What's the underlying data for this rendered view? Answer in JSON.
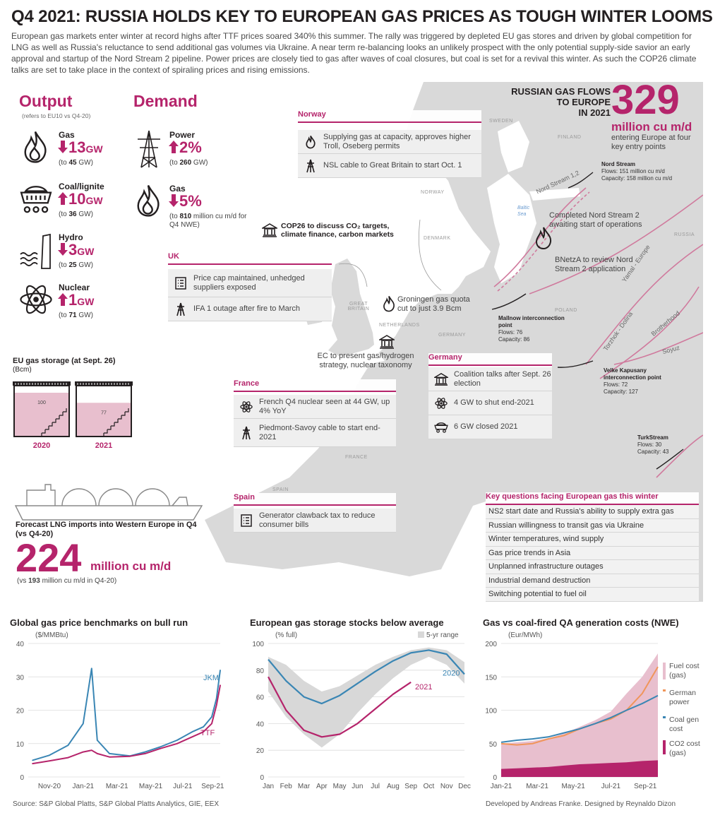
{
  "title": "Q4 2021: RUSSIA HOLDS KEY TO EUROPEAN GAS PRICES AS TOUGH WINTER LOOMS",
  "intro": "European gas markets enter winter at record highs after TTF prices soared 340% this summer. The rally was triggered by depleted EU gas stores and driven by global competition for LNG as well as Russia's reluctance to send additional gas volumes via Ukraine. A near term re-balancing looks an unlikely prospect with the only potential supply-side savior an early approval and startup of the Nord Stream 2 pipeline. Power prices are closely tied to gas after waves of coal closures, but coal is set for a revival this winter. As such the COP26 climate talks are set to take place in the context of spiraling prices and rising emissions.",
  "colors": {
    "accent": "#b5246b",
    "pink_fill": "#e8bfce",
    "blue": "#3a86b4",
    "orange": "#f0955a",
    "map_grey": "#d9d9d9"
  },
  "output": {
    "title": "Output",
    "subtitle": "(refers to EU10 vs Q4-20)",
    "items": [
      {
        "name": "Gas",
        "icon": "flame-icon",
        "direction": "down",
        "value": "13",
        "unit": "GW",
        "note_pre": "(to ",
        "note_val": "45",
        "note_post": " GW)"
      },
      {
        "name": "Coal/lignite",
        "icon": "coal-cart-icon",
        "direction": "up",
        "value": "10",
        "unit": "GW",
        "note_pre": "(to ",
        "note_val": "36",
        "note_post": " GW)"
      },
      {
        "name": "Hydro",
        "icon": "hydro-icon",
        "direction": "down",
        "value": "3",
        "unit": "GW",
        "note_pre": "(to ",
        "note_val": "25",
        "note_post": " GW)"
      },
      {
        "name": "Nuclear",
        "icon": "atom-icon",
        "direction": "up",
        "value": "1",
        "unit": "GW",
        "note_pre": "(to ",
        "note_val": "71",
        "note_post": " GW)"
      }
    ]
  },
  "demand": {
    "title": "Demand",
    "items": [
      {
        "name": "Power",
        "icon": "pylon-icon",
        "direction": "up",
        "value": "2%",
        "note_pre": "(to ",
        "note_val": "260",
        "note_post": " GW)"
      },
      {
        "name": "Gas",
        "icon": "flame-icon",
        "direction": "down",
        "value": "5%",
        "note_pre": "(to ",
        "note_val": "810",
        "note_post": " million cu m/d for Q4 NWE)"
      }
    ]
  },
  "storage": {
    "title": "EU gas storage (at Sept. 26)",
    "unit": "(Bcm)",
    "tanks": [
      {
        "year": "2020",
        "value": 100
      },
      {
        "year": "2021",
        "value": 77
      }
    ]
  },
  "lng": {
    "title": "Forecast LNG imports into Western Europe in Q4",
    "subtitle": "(vs Q4-20)",
    "value": "224",
    "unit": "million cu m/d",
    "note_pre": "(vs ",
    "note_val": "193",
    "note_post": " million cu m/d in Q4-20)"
  },
  "russian_flows": {
    "label": "RUSSIAN GAS FLOWS TO EUROPE IN 2021",
    "line1": "RUSSIAN GAS FLOWS",
    "line2": "TO EUROPE",
    "line3": "IN 2021",
    "value": "329",
    "unit": "million cu m/d",
    "note": "entering Europe at four key entry points"
  },
  "map": {
    "countries": [
      "SWEDEN",
      "FINLAND",
      "NORWAY",
      "DENMARK",
      "RUSSIA",
      "GREAT BRITAIN",
      "NETHERLANDS",
      "GERMANY",
      "POLAND",
      "FRANCE",
      "SPAIN"
    ],
    "sea": "Baltic Sea",
    "pipelines": [
      "Nord Stream 1,2",
      "Yamal - Europe",
      "Torzhok - Dolina",
      "Brotherhood",
      "Soyuz"
    ],
    "entry_points": [
      {
        "name": "Nord Stream",
        "flows": "Flows: 151 million cu m/d",
        "capacity": "Capacity: 158 million cu m/d"
      },
      {
        "name": "Mallnow interconnection point",
        "flows": "Flows: 76",
        "capacity": "Capacity: 86"
      },
      {
        "name": "Velke Kapusany interconnection point",
        "flows": "Flows: 72",
        "capacity": "Capacity: 127"
      },
      {
        "name": "TurkStream",
        "flows": "Flows: 30",
        "capacity": "Capacity: 43"
      }
    ],
    "annotations": {
      "ns2": "Completed Nord Stream 2 awaiting start of operations",
      "bnetza": "BNetzA to review Nord Stream 2 application",
      "cop26": "COP26 to discuss CO₂ targets, climate finance, carbon markets",
      "groningen": "Groningen gas quota cut to just 3.9 Bcm",
      "ec": "EC to present gas/hydrogen strategy, nuclear taxonomy"
    }
  },
  "panels": {
    "norway": {
      "title": "Norway",
      "rows": [
        {
          "icon": "flame-icon",
          "text": "Supplying gas at capacity, approves higher Troll, Oseberg permits"
        },
        {
          "icon": "pylon-icon",
          "text": "NSL cable to Great Britain to start Oct. 1"
        }
      ]
    },
    "uk": {
      "title": "UK",
      "rows": [
        {
          "icon": "checklist-icon",
          "text": "Price cap maintained, unhedged suppliers exposed"
        },
        {
          "icon": "pylon-icon",
          "text": "IFA 1 outage after fire to March"
        }
      ]
    },
    "germany": {
      "title": "Germany",
      "rows": [
        {
          "icon": "government-icon",
          "text": "Coalition talks after Sept. 26 election"
        },
        {
          "icon": "atom-icon",
          "text": "4 GW to shut end-2021"
        },
        {
          "icon": "coal-cart-icon",
          "text": "6 GW closed 2021"
        }
      ]
    },
    "france": {
      "title": "France",
      "rows": [
        {
          "icon": "atom-icon",
          "text": "French Q4 nuclear seen at 44 GW, up 4% YoY"
        },
        {
          "icon": "pylon-icon",
          "text": "Piedmont-Savoy cable to start end-2021"
        }
      ]
    },
    "spain": {
      "title": "Spain",
      "rows": [
        {
          "icon": "checklist-icon",
          "text": "Generator clawback tax to reduce consumer bills"
        }
      ]
    }
  },
  "key_questions": {
    "title": "Key questions facing European gas this winter",
    "items": [
      "NS2 start date and Russia's ability to supply extra gas",
      "Russian willingness to transit gas via Ukraine",
      "Winter temperatures, wind supply",
      "Gas price trends in Asia",
      "Unplanned infrastructure outages",
      "Industrial demand destruction",
      "Switching potential to fuel oil"
    ]
  },
  "chart_data": [
    {
      "type": "line",
      "title": "Global gas price benchmarks on bull run",
      "ylabel": "($/MMBtu)",
      "ylim": [
        0,
        40
      ],
      "yticks": [
        "0",
        "10",
        "20",
        "30",
        "40"
      ],
      "xticks": [
        "Nov-20",
        "Jan-21",
        "Mar-21",
        "May-21",
        "Jul-21",
        "Sep-21"
      ],
      "x": [
        "Oct-20",
        "Nov-20",
        "Dec-20",
        "Jan-21 (early)",
        "Jan-21 (mid)",
        "Jan-21 (late)",
        "Feb-21",
        "Mar-21",
        "Apr-21",
        "May-21",
        "Jun-21",
        "Jul-21",
        "Aug-21",
        "Sep-21 (early)",
        "Sep-21 (mid)",
        "Sep-21 (late)"
      ],
      "series": [
        {
          "name": "JKM",
          "values": [
            5.0,
            6.5,
            9.5,
            16,
            32.5,
            11,
            7.0,
            6.3,
            7.5,
            9.0,
            11.0,
            13.5,
            15.0,
            18.0,
            23.5,
            32.0
          ]
        },
        {
          "name": "TTF",
          "values": [
            4.0,
            4.8,
            5.8,
            7.5,
            8.0,
            7.0,
            6.0,
            6.2,
            7.0,
            8.5,
            10.0,
            12.0,
            13.5,
            16.0,
            21.5,
            27.5
          ]
        }
      ]
    },
    {
      "type": "line",
      "title": "European gas storage stocks below average",
      "ylabel": "(% full)",
      "ylim": [
        0,
        100
      ],
      "yticks": [
        "0",
        "20",
        "40",
        "60",
        "80",
        "100"
      ],
      "x": [
        "Jan",
        "Feb",
        "Mar",
        "Apr",
        "May",
        "Jun",
        "Jul",
        "Aug",
        "Sep",
        "Oct",
        "Nov",
        "Dec"
      ],
      "range_name": "5-yr range",
      "range_low": [
        64,
        45,
        32,
        22,
        32,
        48,
        62,
        74,
        84,
        90,
        84,
        70
      ],
      "range_high": [
        90,
        84,
        72,
        64,
        68,
        76,
        84,
        90,
        95,
        97,
        95,
        86
      ],
      "series": [
        {
          "name": "2020",
          "values": [
            88,
            72,
            60,
            55,
            61,
            70,
            79,
            87,
            93,
            95,
            92,
            77
          ]
        },
        {
          "name": "2021",
          "values": [
            75,
            50,
            35,
            30,
            32,
            40,
            51,
            62,
            71,
            null,
            null,
            null
          ]
        }
      ]
    },
    {
      "type": "area",
      "title": "Gas vs coal-fired QA generation costs (NWE)",
      "ylabel": "(Eur/MWh)",
      "ylim": [
        0,
        200
      ],
      "yticks": [
        "0",
        "50",
        "100",
        "150",
        "200"
      ],
      "xticks": [
        "Jan-21",
        "Mar-21",
        "May-21",
        "Jul-21",
        "Sep-21"
      ],
      "x": [
        "Jan-21",
        "Feb-21",
        "Mar-21",
        "Apr-21",
        "May-21",
        "Jun-21",
        "Jul-21",
        "Aug-21",
        "Sep-21 (early)",
        "Sep-21 (mid)",
        "Sep-21 (late)"
      ],
      "series": [
        {
          "name": "Fuel cost (gas)",
          "values": [
            50,
            52,
            54,
            58,
            65,
            75,
            85,
            98,
            125,
            150,
            185
          ]
        },
        {
          "name": "German power",
          "values": [
            50,
            48,
            50,
            57,
            62,
            72,
            80,
            87,
            100,
            125,
            165
          ]
        },
        {
          "name": "Coal gen cost",
          "values": [
            52,
            55,
            57,
            60,
            66,
            72,
            80,
            89,
            100,
            110,
            122
          ]
        },
        {
          "name": "CO2 cost (gas)",
          "values": [
            12,
            13,
            14,
            15,
            17,
            19,
            20,
            21,
            22,
            24,
            25
          ]
        }
      ]
    }
  ],
  "source": "Source: S&P Global Platts, S&P Global Platts Analytics, GIE, EEX",
  "credits": "Developed by Andreas Franke. Designed by Reynaldo Dizon"
}
